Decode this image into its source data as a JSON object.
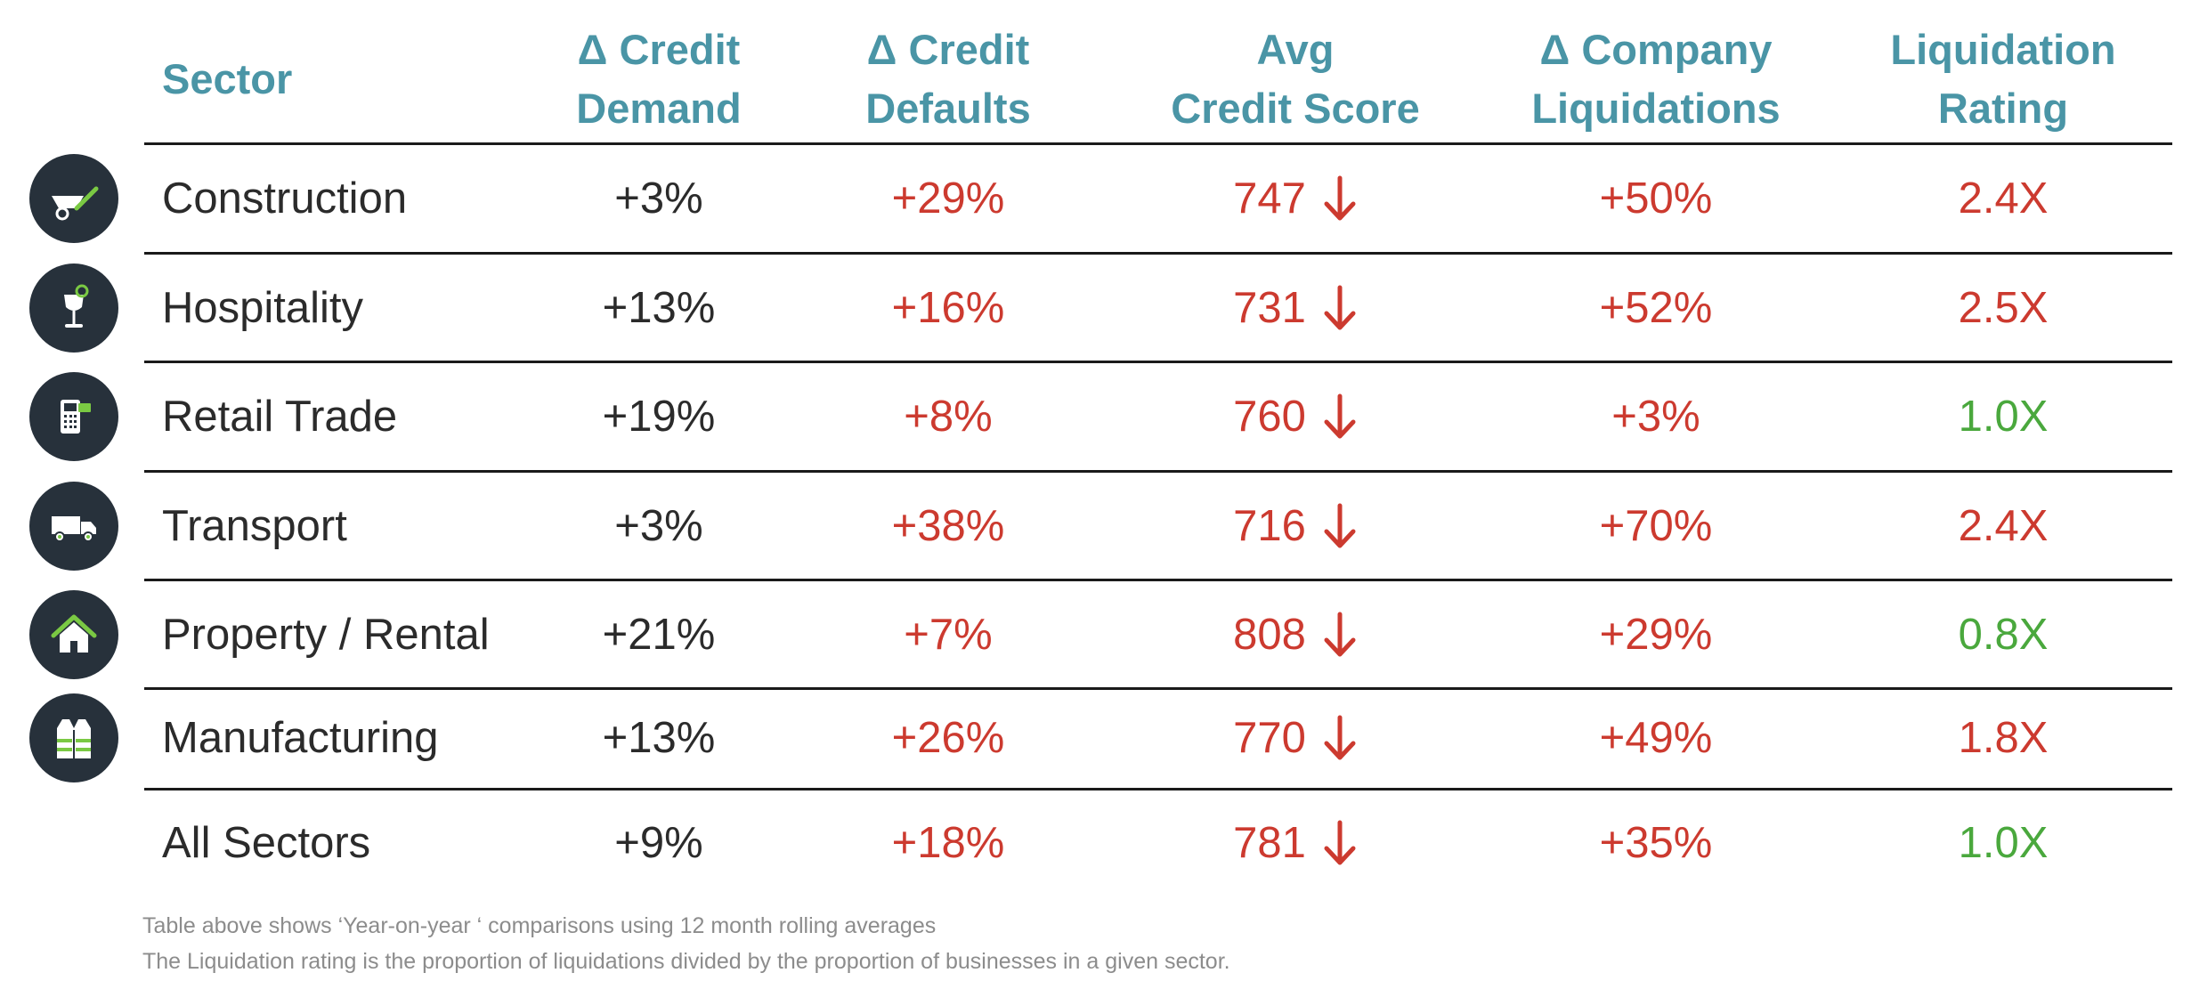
{
  "colors": {
    "header": "#4a95a6",
    "negative": "#cc3a2f",
    "positive": "#4aa83d",
    "neutral": "#2b2b2b",
    "icon_bg": "#27313b",
    "icon_accent": "#7ac943"
  },
  "chart_data": {
    "type": "table",
    "columns": [
      {
        "line1": "Sector",
        "line2": ""
      },
      {
        "line1": "Δ Credit",
        "line2": "Demand"
      },
      {
        "line1": "Δ Credit",
        "line2": "Defaults"
      },
      {
        "line1": "Avg",
        "line2": "Credit Score"
      },
      {
        "line1": "Δ Company",
        "line2": "Liquidations"
      },
      {
        "line1": "Liquidation",
        "line2": "Rating"
      }
    ],
    "rows": [
      {
        "sector": "Construction",
        "icon": "wheelbarrow-icon",
        "credit_demand": "+3%",
        "credit_defaults": "+29%",
        "credit_score": "747",
        "score_trend": "down",
        "liquidations": "+50%",
        "rating": "2.4X",
        "rating_status": "high"
      },
      {
        "sector": "Hospitality",
        "icon": "cocktail-glass-icon",
        "credit_demand": "+13%",
        "credit_defaults": "+16%",
        "credit_score": "731",
        "score_trend": "down",
        "liquidations": "+52%",
        "rating": "2.5X",
        "rating_status": "high"
      },
      {
        "sector": "Retail Trade",
        "icon": "card-terminal-icon",
        "credit_demand": "+19%",
        "credit_defaults": "+8%",
        "credit_score": "760",
        "score_trend": "down",
        "liquidations": "+3%",
        "rating": "1.0X",
        "rating_status": "low"
      },
      {
        "sector": "Transport",
        "icon": "delivery-truck-icon",
        "credit_demand": "+3%",
        "credit_defaults": "+38%",
        "credit_score": "716",
        "score_trend": "down",
        "liquidations": "+70%",
        "rating": "2.4X",
        "rating_status": "high"
      },
      {
        "sector": "Property / Rental",
        "icon": "house-icon",
        "credit_demand": "+21%",
        "credit_defaults": "+7%",
        "credit_score": "808",
        "score_trend": "down",
        "liquidations": "+29%",
        "rating": "0.8X",
        "rating_status": "low"
      },
      {
        "sector": "Manufacturing",
        "icon": "safety-vest-icon",
        "credit_demand": "+13%",
        "credit_defaults": "+26%",
        "credit_score": "770",
        "score_trend": "down",
        "liquidations": "+49%",
        "rating": "1.8X",
        "rating_status": "high"
      },
      {
        "sector": "All Sectors",
        "icon": "",
        "credit_demand": "+9%",
        "credit_defaults": "+18%",
        "credit_score": "781",
        "score_trend": "down",
        "liquidations": "+35%",
        "rating": "1.0X",
        "rating_status": "low"
      }
    ]
  },
  "footnotes": [
    "Table above shows ‘Year-on-year ‘ comparisons using 12 month rolling averages",
    "The Liquidation rating is the proportion of liquidations divided by the proportion of businesses in a given sector."
  ]
}
